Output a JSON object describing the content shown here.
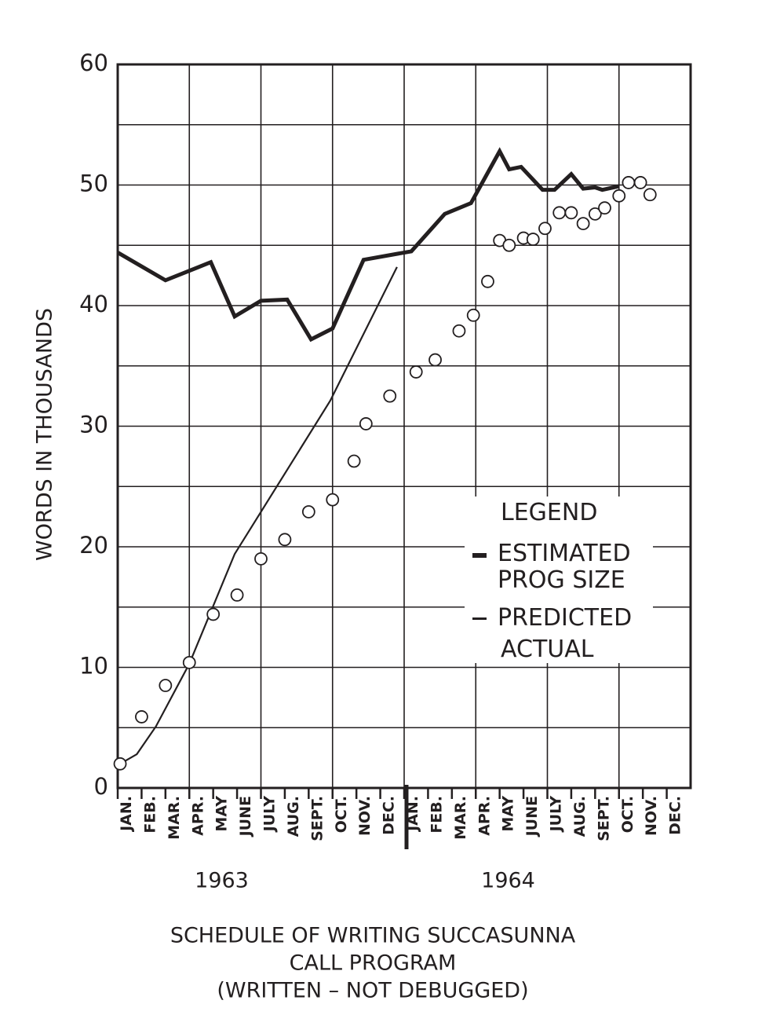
{
  "chart_data": {
    "type": "line",
    "title": [
      "SCHEDULE OF WRITING SUCCASUNNA",
      "CALL PROGRAM",
      "(WRITTEN – NOT DEBUGGED)"
    ],
    "ylabel": "WORDS IN THOUSANDS",
    "year_labels": [
      "1963",
      "1964"
    ],
    "legend_title": "LEGEND",
    "xlim": [
      0,
      24
    ],
    "xticks": [
      {
        "value": 0,
        "label": "JAN."
      },
      {
        "value": 1,
        "label": "FEB."
      },
      {
        "value": 2,
        "label": "MAR."
      },
      {
        "value": 3,
        "label": "APR."
      },
      {
        "value": 4,
        "label": "MAY"
      },
      {
        "value": 5,
        "label": "JUNE"
      },
      {
        "value": 6,
        "label": "JULY"
      },
      {
        "value": 7,
        "label": "AUG."
      },
      {
        "value": 8,
        "label": "SEPT."
      },
      {
        "value": 9,
        "label": "OCT."
      },
      {
        "value": 10,
        "label": "NOV."
      },
      {
        "value": 11,
        "label": "DEC."
      },
      {
        "value": 12,
        "label": "JAN."
      },
      {
        "value": 13,
        "label": "FEB."
      },
      {
        "value": 14,
        "label": "MAR."
      },
      {
        "value": 15,
        "label": "APR."
      },
      {
        "value": 16,
        "label": "MAY"
      },
      {
        "value": 17,
        "label": "JUNE"
      },
      {
        "value": 18,
        "label": "JULY"
      },
      {
        "value": 19,
        "label": "AUG."
      },
      {
        "value": 20,
        "label": "SEPT."
      },
      {
        "value": 21,
        "label": "OCT."
      },
      {
        "value": 22,
        "label": "NOV."
      },
      {
        "value": 23,
        "label": "DEC."
      }
    ],
    "ylim": [
      0,
      60
    ],
    "yticks": [
      0,
      10,
      20,
      30,
      40,
      50,
      60
    ],
    "grid": true,
    "series": [
      {
        "name": "ESTIMATED PROG SIZE",
        "style": "thick",
        "color": "#231f20",
        "x": [
          0,
          2.0,
          3.9,
          4.9,
          6.0,
          7.1,
          8.1,
          9.0,
          10.3,
          12.3,
          13.7,
          14.8,
          16.0,
          16.4,
          16.9,
          17.8,
          18.3,
          19.0,
          19.5,
          20.0,
          20.3,
          21.0
        ],
        "values": [
          44.4,
          42.1,
          43.6,
          39.1,
          40.4,
          40.5,
          37.2,
          38.1,
          43.8,
          44.5,
          47.6,
          48.5,
          52.8,
          51.3,
          51.5,
          49.6,
          49.6,
          50.9,
          49.7,
          49.8,
          49.6,
          49.9
        ]
      },
      {
        "name": "PREDICTED",
        "style": "thin",
        "color": "#231f20",
        "x": [
          0.1,
          0.8,
          1.6,
          3.0,
          4.9,
          8.9,
          11.7
        ],
        "values": [
          2.0,
          2.8,
          5.1,
          10.3,
          19.4,
          32.1,
          43.2
        ]
      },
      {
        "name": "ACTUAL",
        "style": "circles",
        "color": "#231f20",
        "x": [
          0.1,
          1.0,
          2.0,
          3.0,
          4.0,
          5.0,
          6.0,
          7.0,
          8.0,
          9.0,
          9.9,
          10.4,
          11.4,
          12.5,
          13.3,
          14.3,
          14.9,
          15.5,
          16.0,
          16.4,
          17.0,
          17.4,
          17.9,
          18.5,
          19.0,
          19.5,
          20.0,
          20.4,
          21.0,
          21.4,
          21.9,
          22.3
        ],
        "values": [
          2.0,
          5.9,
          8.5,
          10.4,
          14.4,
          16.0,
          19.0,
          20.6,
          22.9,
          23.9,
          27.1,
          30.2,
          32.5,
          34.5,
          35.5,
          37.9,
          39.2,
          42.0,
          45.4,
          45.0,
          45.6,
          45.5,
          46.4,
          47.7,
          47.7,
          46.8,
          47.6,
          48.1,
          49.1,
          50.2,
          50.2,
          49.2
        ]
      }
    ]
  }
}
